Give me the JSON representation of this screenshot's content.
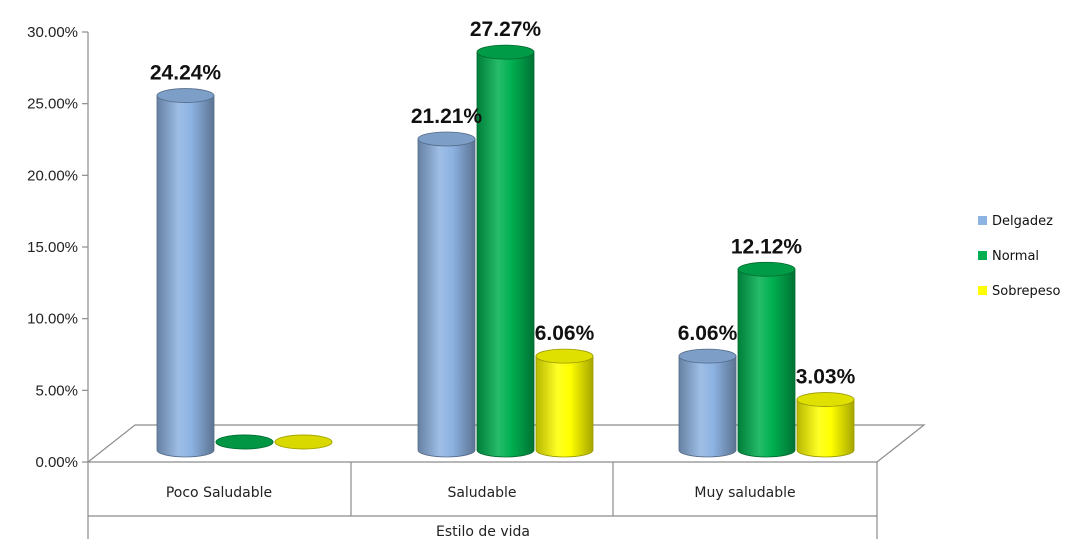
{
  "chart_data": {
    "type": "bar",
    "categories": [
      "Poco Saludable",
      "Saludable",
      "Muy saludable"
    ],
    "series": [
      {
        "name": "Delgadez",
        "values": [
          24.24,
          21.21,
          6.06
        ],
        "labels": [
          "24.24%",
          "21.21%",
          "6.06%"
        ],
        "color": "#8db3e2"
      },
      {
        "name": "Normal",
        "values": [
          0,
          27.27,
          12.12
        ],
        "labels": [
          "",
          "27.27%",
          "12.12%"
        ],
        "color": "#00b050"
      },
      {
        "name": "Sobrepeso",
        "values": [
          0,
          6.06,
          3.03
        ],
        "labels": [
          "",
          "6.06%",
          "3.03%"
        ],
        "color": "#ffff00"
      }
    ],
    "y_ticks": [
      "0.00%",
      "5.00%",
      "10.00%",
      "15.00%",
      "20.00%",
      "25.00%",
      "30.00%"
    ],
    "ylim": [
      0,
      30
    ],
    "xlabel": "Estilo de vida",
    "ylabel": "",
    "legend_position": "right",
    "grid": false,
    "style": "3d-cylinder"
  }
}
